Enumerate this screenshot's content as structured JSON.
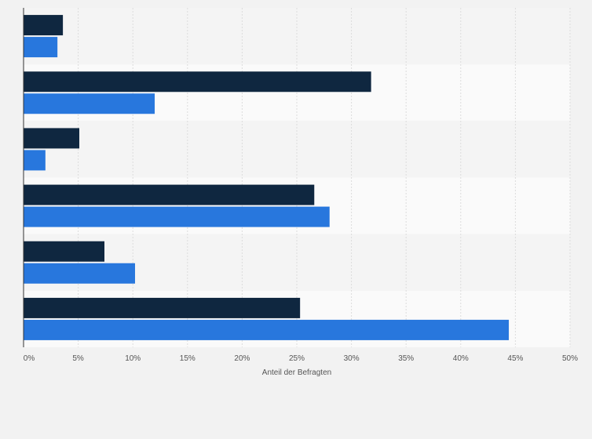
{
  "chart_data": {
    "type": "bar",
    "orientation": "horizontal",
    "categories": [
      "",
      "",
      "",
      "",
      "",
      ""
    ],
    "series": [
      {
        "color": "#0f2740",
        "values": [
          3.6,
          31.8,
          5.1,
          26.6,
          7.4,
          25.3
        ]
      },
      {
        "color": "#2877dd",
        "values": [
          3.1,
          12.0,
          2.0,
          28.0,
          10.2,
          44.4
        ]
      }
    ],
    "xlabel": "Anteil der Befragten",
    "xlim": [
      0,
      50
    ],
    "xticks": [
      0,
      5,
      10,
      15,
      20,
      25,
      30,
      35,
      40,
      45,
      50
    ],
    "xtick_labels": [
      "0%",
      "5%",
      "10%",
      "15%",
      "20%",
      "25%",
      "30%",
      "35%",
      "40%",
      "45%",
      "50%"
    ],
    "grid": true,
    "band_colors": [
      "#f4f4f4",
      "#fafafa"
    ]
  }
}
